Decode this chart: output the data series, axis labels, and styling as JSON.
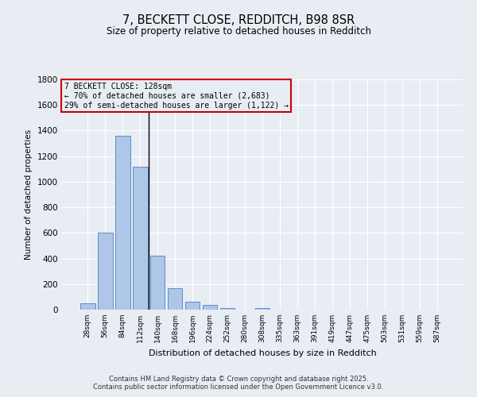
{
  "title": "7, BECKETT CLOSE, REDDITCH, B98 8SR",
  "subtitle": "Size of property relative to detached houses in Redditch",
  "xlabel": "Distribution of detached houses by size in Redditch",
  "ylabel": "Number of detached properties",
  "bins": [
    "28sqm",
    "56sqm",
    "84sqm",
    "112sqm",
    "140sqm",
    "168sqm",
    "196sqm",
    "224sqm",
    "252sqm",
    "280sqm",
    "308sqm",
    "335sqm",
    "363sqm",
    "391sqm",
    "419sqm",
    "447sqm",
    "475sqm",
    "503sqm",
    "531sqm",
    "559sqm",
    "587sqm"
  ],
  "bar_values": [
    50,
    600,
    1360,
    1120,
    425,
    170,
    60,
    35,
    15,
    0,
    15,
    0,
    0,
    0,
    0,
    0,
    0,
    0,
    0,
    0,
    0
  ],
  "bar_color": "#aec6e8",
  "bar_edgecolor": "#5b8cc8",
  "bg_color": "#e8edf4",
  "grid_color": "#ffffff",
  "ylim": [
    0,
    1800
  ],
  "yticks": [
    0,
    200,
    400,
    600,
    800,
    1000,
    1200,
    1400,
    1600,
    1800
  ],
  "property_label": "7 BECKETT CLOSE: 128sqm",
  "annotation_line1": "← 70% of detached houses are smaller (2,683)",
  "annotation_line2": "29% of semi-detached houses are larger (1,122) →",
  "annotation_box_color": "#cc0000",
  "vline_x": 3.5,
  "footer1": "Contains HM Land Registry data © Crown copyright and database right 2025.",
  "footer2": "Contains public sector information licensed under the Open Government Licence v3.0."
}
